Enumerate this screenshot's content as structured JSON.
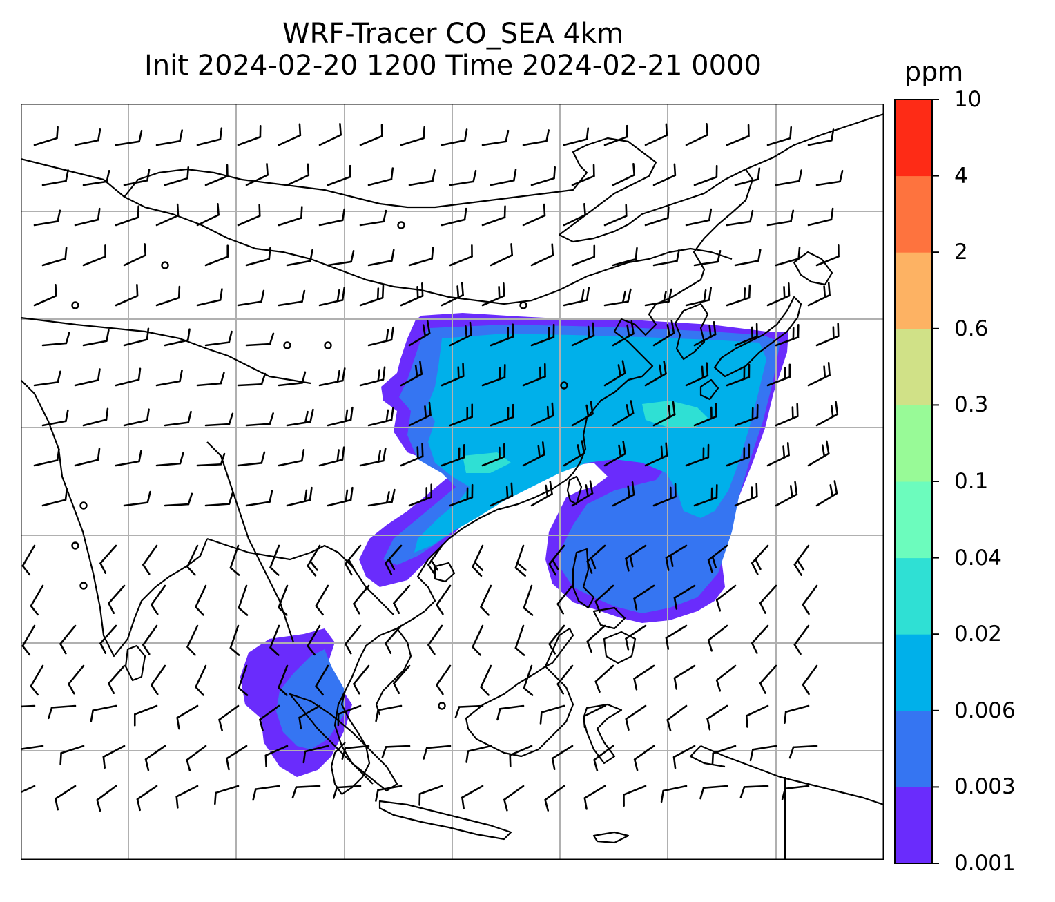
{
  "title": {
    "line1": "WRF-Tracer CO_SEA 4km",
    "line2": "Init 2024-02-20 1200 Time 2024-02-21 0000"
  },
  "colorbar": {
    "units": "ppm",
    "levels": [
      "0.001",
      "0.003",
      "0.006",
      "0.02",
      "0.04",
      "0.1",
      "0.3",
      "0.6",
      "2",
      "4",
      "10"
    ],
    "colors": [
      "#6a2cfc",
      "#3575f2",
      "#00b0ea",
      "#2fe0d4",
      "#6cfcbd",
      "#98fa97",
      "#d0e187",
      "#fdb263",
      "#fe733e",
      "#fe2b16"
    ]
  },
  "map": {
    "gridlines": true,
    "coastline_color": "#000000",
    "gridline_color": "#b0b0b0",
    "plume_colors": {
      "faint": "#6a2cfc",
      "low": "#3575f2",
      "mid": "#00b0ea",
      "high": "#2fe0d4"
    },
    "wind_barbs": "black",
    "calm_marker": "circle"
  }
}
